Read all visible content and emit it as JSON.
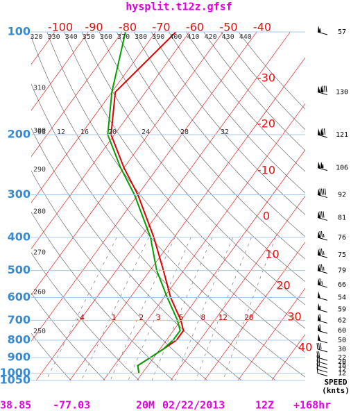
{
  "chart_data": {
    "type": "skewt",
    "title": "hysplit.t12z.gfsf",
    "log_y": true,
    "ylim": [
      1050,
      100
    ],
    "yticks": [
      100,
      200,
      300,
      400,
      500,
      600,
      700,
      800,
      900,
      1000,
      1050
    ],
    "pressure": [
      100,
      150,
      200,
      250,
      300,
      400,
      500,
      600,
      700,
      750,
      800,
      850,
      900,
      950,
      1000
    ],
    "temperature": {
      "color": "#e00000",
      "values": [
        -64,
        -69,
        -61,
        -50,
        -40,
        -26,
        -16,
        -8,
        0,
        3,
        3,
        1,
        -1,
        -3,
        -1
      ]
    },
    "dewpoint": {
      "color": "#00a000",
      "values": [
        -79,
        -70,
        -62,
        -51,
        -41,
        -27,
        -18,
        -9,
        -1,
        2,
        2,
        1,
        -1,
        -3,
        -1
      ]
    },
    "temperature_labels_top": [
      -100,
      -90,
      -80,
      -70,
      -60,
      -50,
      -40
    ],
    "temperature_labels_right": [
      -30,
      -20,
      -10,
      0,
      10,
      20,
      30,
      40
    ],
    "isotherm_color": "#e00000",
    "pressure_line_color": "#a8c8ec",
    "theta_labels_top": [
      320,
      330,
      340,
      350,
      360,
      370,
      380,
      390,
      400,
      410,
      420,
      430,
      440
    ],
    "theta_labels_left": [
      310,
      300,
      290,
      280,
      270,
      260,
      250
    ],
    "mixing_ratio_labels": [
      {
        "value": 0.4,
        "label": ".4"
      },
      1,
      2,
      3,
      5,
      8,
      12,
      20
    ],
    "upper_labels": [
      {
        "value": 8,
        "label": "08"
      },
      12,
      16,
      20,
      24,
      28,
      32
    ],
    "wind": {
      "pressure": [
        100,
        150,
        200,
        250,
        300,
        350,
        400,
        450,
        500,
        550,
        600,
        650,
        700,
        750,
        800,
        850,
        900,
        925,
        950,
        975,
        1000
      ],
      "speeds": [
        57,
        130,
        121,
        106,
        92,
        81,
        76,
        75,
        79,
        66,
        54,
        59,
        62,
        60,
        50,
        30,
        22,
        20,
        18,
        12,
        12
      ],
      "title": "SPEED",
      "unit_label": "(knts)"
    },
    "footer": {
      "latitude": 38.85,
      "longitude": -77.03,
      "elevation": "20M",
      "date": "02/22/2013",
      "time": "12Z",
      "forecast": "+168hr"
    }
  }
}
